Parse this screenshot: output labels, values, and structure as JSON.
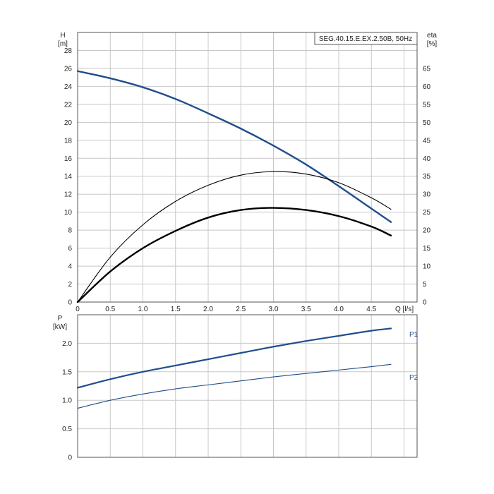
{
  "title_box": "SEG.40.15.E.EX.2.50B, 50Hz",
  "chart_data": [
    {
      "type": "line",
      "name": "head-efficiency",
      "xlabel": "Q [l/s]",
      "ylabel_left_name": "H",
      "ylabel_left_unit": "[m]",
      "ylabel_right_name": "eta",
      "ylabel_right_unit": "[%]",
      "xlim": [
        0,
        5.2
      ],
      "ylim_left": [
        0,
        30
      ],
      "ylim_right": [
        0,
        75
      ],
      "x_ticks": [
        0,
        0.5,
        1.0,
        1.5,
        2.0,
        2.5,
        3.0,
        3.5,
        4.0,
        4.5
      ],
      "x_tick_labels": [
        "0",
        "0.5",
        "1.0",
        "1.5",
        "2.0",
        "2.5",
        "3.0",
        "3.5",
        "4.0",
        "4.5"
      ],
      "y_left_ticks": [
        0,
        2,
        4,
        6,
        8,
        10,
        12,
        14,
        16,
        18,
        20,
        22,
        24,
        26,
        28
      ],
      "y_right_ticks": [
        0,
        5,
        10,
        15,
        20,
        25,
        30,
        35,
        40,
        45,
        50,
        55,
        60,
        65
      ],
      "grid": true,
      "series": [
        {
          "axis": "left",
          "color": "#1f4e8c",
          "stroke": "thick",
          "x": [
            0,
            0.5,
            1.0,
            1.5,
            2.0,
            2.5,
            3.0,
            3.5,
            4.0,
            4.5,
            4.8
          ],
          "y": [
            25.7,
            24.9,
            23.9,
            22.6,
            21.0,
            19.3,
            17.4,
            15.3,
            12.9,
            10.4,
            8.9
          ]
        },
        {
          "axis": "right",
          "color": "#000000",
          "stroke": "thin",
          "x": [
            0,
            0.5,
            1.0,
            1.5,
            2.0,
            2.5,
            3.0,
            3.5,
            4.0,
            4.5,
            4.8
          ],
          "y": [
            0,
            12.5,
            21.5,
            28.0,
            32.5,
            35.3,
            36.3,
            35.6,
            33.2,
            29.0,
            25.8
          ]
        },
        {
          "axis": "right",
          "color": "#000000",
          "stroke": "thick",
          "x": [
            0,
            0.5,
            1.0,
            1.5,
            2.0,
            2.5,
            3.0,
            3.5,
            4.0,
            4.5,
            4.8
          ],
          "y": [
            0,
            8.5,
            15.0,
            19.8,
            23.5,
            25.6,
            26.2,
            25.6,
            23.9,
            21.0,
            18.5
          ]
        }
      ]
    },
    {
      "type": "line",
      "name": "power",
      "xlabel": "",
      "ylabel_name": "P",
      "ylabel_unit": "[kW]",
      "xlim": [
        0,
        5.2
      ],
      "ylim": [
        0,
        2.5
      ],
      "y_ticks": [
        0,
        0.5,
        1.0,
        1.5,
        2.0
      ],
      "y_tick_labels": [
        "0",
        "0.5",
        "1.0",
        "1.5",
        "2.0"
      ],
      "x_grid": [
        0,
        0.5,
        1.0,
        1.5,
        2.0,
        2.5,
        3.0,
        3.5,
        4.0,
        4.5,
        5.0
      ],
      "grid": true,
      "series": [
        {
          "name": "P1",
          "color": "#1f4e8c",
          "stroke": "thick",
          "x": [
            0,
            0.5,
            1.0,
            1.5,
            2.0,
            2.5,
            3.0,
            3.5,
            4.0,
            4.5,
            4.8
          ],
          "y": [
            1.22,
            1.37,
            1.5,
            1.61,
            1.72,
            1.83,
            1.94,
            2.04,
            2.13,
            2.22,
            2.26
          ]
        },
        {
          "name": "P2",
          "color": "#1f4e8c",
          "stroke": "thin",
          "x": [
            0,
            0.5,
            1.0,
            1.5,
            2.0,
            2.5,
            3.0,
            3.5,
            4.0,
            4.5,
            4.8
          ],
          "y": [
            0.86,
            1.0,
            1.11,
            1.2,
            1.27,
            1.34,
            1.41,
            1.47,
            1.53,
            1.59,
            1.63
          ]
        }
      ]
    }
  ]
}
